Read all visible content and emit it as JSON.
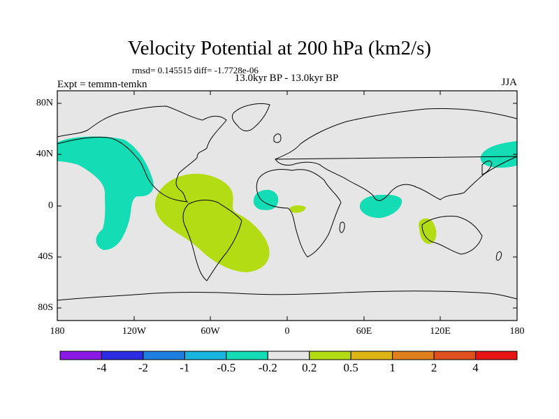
{
  "title": "Velocity Potential at 200 hPa (km2/s)",
  "stats": "rmsd= 0.145515 diff= -1.7728e-06",
  "subtitle": "13.0kyr BP - 13.0kyr BP",
  "experiment": "Expt = temmn-temkn",
  "season": "JJA",
  "y_ticks": [
    "80N",
    "40N",
    "0",
    "40S",
    "80S"
  ],
  "x_ticks": [
    "180",
    "120W",
    "60W",
    "0",
    "60E",
    "120E",
    "180"
  ],
  "colorbar": {
    "colors": [
      "#8c18e6",
      "#2c2ce0",
      "#1e7fe0",
      "#1ab4e0",
      "#14dcb4",
      "#e6e6e6",
      "#b4dc14",
      "#dcb414",
      "#e07f1e",
      "#e0501e",
      "#e61414"
    ],
    "labels": [
      "-4",
      "-2",
      "-1",
      "-0.5",
      "-0.2",
      "0.2",
      "0.5",
      "1",
      "2",
      "4"
    ]
  },
  "colors": {
    "background": "#e6e6e6",
    "negative_anomaly": "#14dcb4",
    "positive_anomaly": "#b4dc14"
  }
}
